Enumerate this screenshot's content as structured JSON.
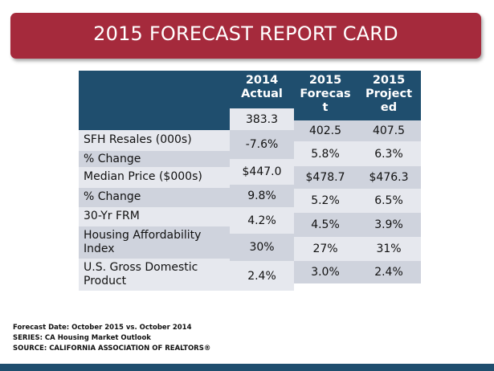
{
  "title": "2015 FORECAST REPORT CARD",
  "headers": {
    "col1": "2014 Actual",
    "col2": "2015 Forecas t",
    "col3": "2015 Project ed"
  },
  "row_labels": [
    "SFH Resales (000s)",
    "% Change",
    "Median Price ($000s)",
    "% Change",
    "30-Yr FRM",
    "Housing Affordability Index",
    "U.S. Gross Domestic Product"
  ],
  "actual": [
    "383.3",
    "-7.6%",
    "$447.0",
    "9.8%",
    "4.2%",
    "30%",
    "2.4%"
  ],
  "forecast": [
    "402.5",
    "5.8%",
    "$478.7",
    "5.2%",
    "4.5%",
    "27%",
    "3.0%"
  ],
  "projected": [
    "407.5",
    "6.3%",
    "$476.3",
    "6.5%",
    "3.9%",
    "31%",
    "2.4%"
  ],
  "footer": {
    "line1": "Forecast Date: October 2015 vs. October 2014",
    "line2": "SERIES: CA Housing Market Outlook",
    "line3": "SOURCE:  CALIFORNIA ASSOCIATION OF REALTORS®"
  },
  "colors": {
    "banner": "#a52a3c",
    "header": "#1f4e6e",
    "row_light": "#e6e8ee",
    "row_dark": "#cfd3dd"
  }
}
